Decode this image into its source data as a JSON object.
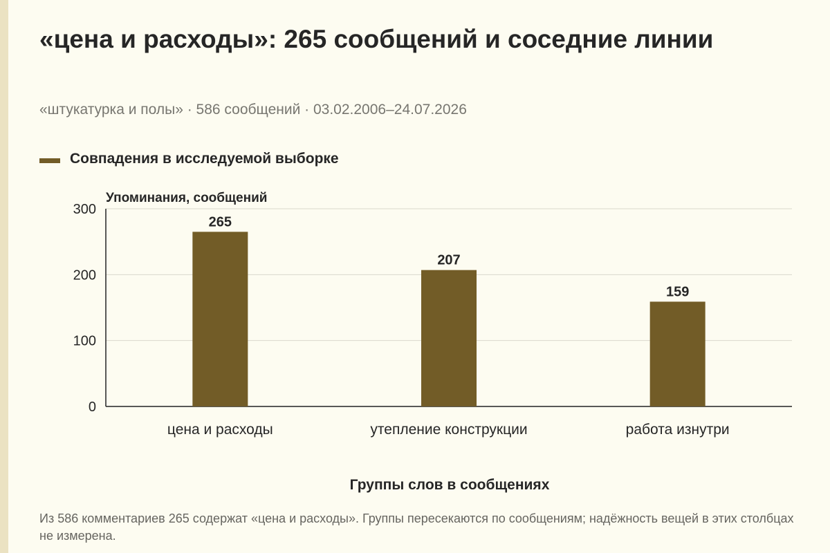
{
  "header": {
    "title": "«цена и расходы»: 265 сообщений и соседние линии",
    "subtitle": "«штукатурка и полы» · 586 сообщений · 03.02.2006–24.07.2026"
  },
  "legend": {
    "label": "Совпадения в исследуемой выборке"
  },
  "chart_data": {
    "type": "bar",
    "categories": [
      "цена и расходы",
      "утепление конструкции",
      "работа изнутри"
    ],
    "series": [
      {
        "name": "Совпадения в исследуемой выборке",
        "values": [
          265,
          207,
          159
        ]
      }
    ],
    "data_labels": [
      "265",
      "207",
      "159"
    ],
    "ylabel": "Упоминания, сообщений",
    "xlabel": "Группы слов в сообщениях",
    "ylim": [
      0,
      300
    ],
    "yticks": [
      0,
      100,
      200,
      300
    ],
    "ytick_labels": [
      "0",
      "100",
      "200",
      "300"
    ],
    "grid": true,
    "legend_position": "top-left",
    "bar_color": "#725c27"
  },
  "footer": {
    "note": "Из 586 комментариев 265 содержат «цена и расходы». Группы пересекаются по сообщениям; надёжность вещей в этих столбцах не измерена."
  }
}
